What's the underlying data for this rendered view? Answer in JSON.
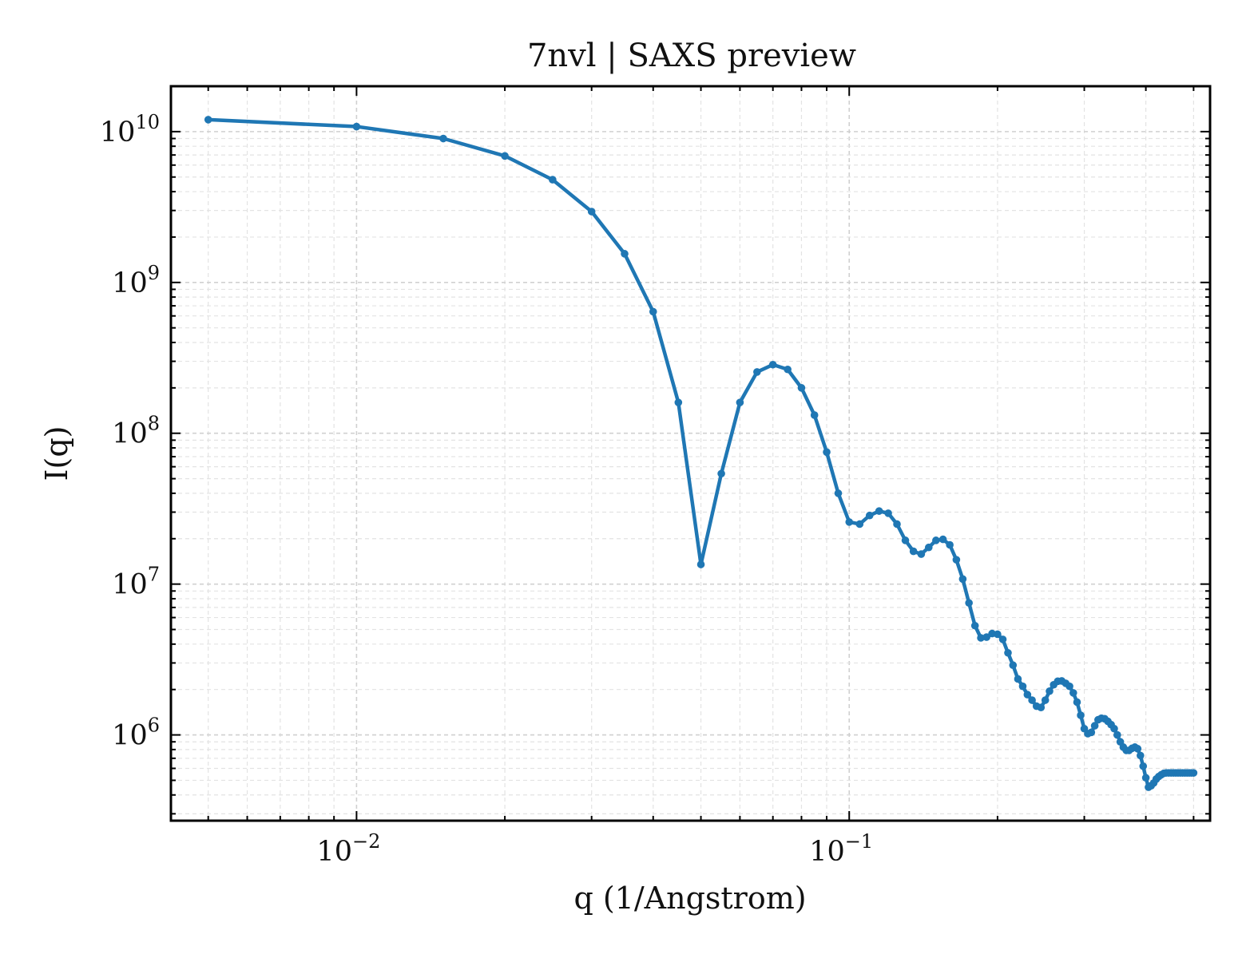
{
  "chart_data": {
    "type": "line",
    "title": "7nvl | SAXS preview",
    "xlabel": "q (1/Angstrom)",
    "ylabel": "I(q)",
    "xscale": "log",
    "yscale": "log",
    "xlim": [
      0.0042,
      0.54
    ],
    "ylim": [
      270000,
      20000000000
    ],
    "grid": true,
    "grid_style": "dashed, light gray, major and minor",
    "ticks_direction": "in",
    "line_color": "#1f77b4",
    "x_ticks": [
      {
        "value": 0.01,
        "base": "10",
        "exp": "−2"
      },
      {
        "value": 0.1,
        "base": "10",
        "exp": "−1"
      }
    ],
    "y_ticks": [
      {
        "value": 1000000,
        "base": "10",
        "exp": "6"
      },
      {
        "value": 10000000,
        "base": "10",
        "exp": "7"
      },
      {
        "value": 100000000,
        "base": "10",
        "exp": "8"
      },
      {
        "value": 1000000000,
        "base": "10",
        "exp": "9"
      },
      {
        "value": 10000000000,
        "base": "10",
        "exp": "10"
      }
    ],
    "series": [
      {
        "x": [
          0.005,
          0.01,
          0.015,
          0.02,
          0.025,
          0.03,
          0.035,
          0.04,
          0.045,
          0.05,
          0.055,
          0.06,
          0.065,
          0.07,
          0.075,
          0.08,
          0.085,
          0.09,
          0.095,
          0.1,
          0.105,
          0.11,
          0.115,
          0.12,
          0.125,
          0.13,
          0.135,
          0.14,
          0.145,
          0.15,
          0.155,
          0.16,
          0.165,
          0.17,
          0.175,
          0.18,
          0.185,
          0.19,
          0.195,
          0.2,
          0.205,
          0.21,
          0.215,
          0.22,
          0.225,
          0.23,
          0.235,
          0.24,
          0.245,
          0.25,
          0.255,
          0.26,
          0.265,
          0.27,
          0.275,
          0.28,
          0.285,
          0.29,
          0.295,
          0.3,
          0.305,
          0.31,
          0.315,
          0.32,
          0.325,
          0.33,
          0.335,
          0.34,
          0.345,
          0.35,
          0.355,
          0.36,
          0.365,
          0.37,
          0.375,
          0.38,
          0.385,
          0.39,
          0.395,
          0.4,
          0.405,
          0.41,
          0.415,
          0.42,
          0.425,
          0.43,
          0.435,
          0.44,
          0.445,
          0.45,
          0.455,
          0.46,
          0.465,
          0.47,
          0.475,
          0.48,
          0.485,
          0.49,
          0.495,
          0.5
        ],
        "y": [
          12000000000,
          10800000000,
          9000000000,
          6900000000,
          4800000000,
          2950000000,
          1550000000,
          640000000,
          160000000,
          13500000,
          54000000,
          160000000,
          255000000,
          285000000,
          265000000,
          200000000,
          132000000,
          75000000,
          40000000,
          25800000,
          25000000,
          28500000,
          30500000,
          29500000,
          25000000,
          19500000,
          16500000,
          15800000,
          17500000,
          19500000,
          19800000,
          18200000,
          14500000,
          10800000,
          7500000,
          5300000,
          4400000,
          4450000,
          4700000,
          4650000,
          4300000,
          3500000,
          2900000,
          2350000,
          2100000,
          1850000,
          1700000,
          1550000,
          1520000,
          1700000,
          1950000,
          2150000,
          2270000,
          2280000,
          2200000,
          2100000,
          1900000,
          1650000,
          1350000,
          1100000,
          1020000,
          1040000,
          1150000,
          1260000,
          1290000,
          1280000,
          1230000,
          1170000,
          1100000,
          1000000,
          900000,
          830000,
          790000,
          790000,
          815000,
          830000,
          810000,
          730000,
          620000,
          520000,
          450000,
          460000,
          480000,
          510000,
          530000,
          545000,
          556000,
          560000,
          560000,
          560000,
          560000,
          560000,
          560000,
          560000,
          560000,
          560000,
          560000,
          560000,
          560000,
          560000
        ]
      }
    ]
  }
}
